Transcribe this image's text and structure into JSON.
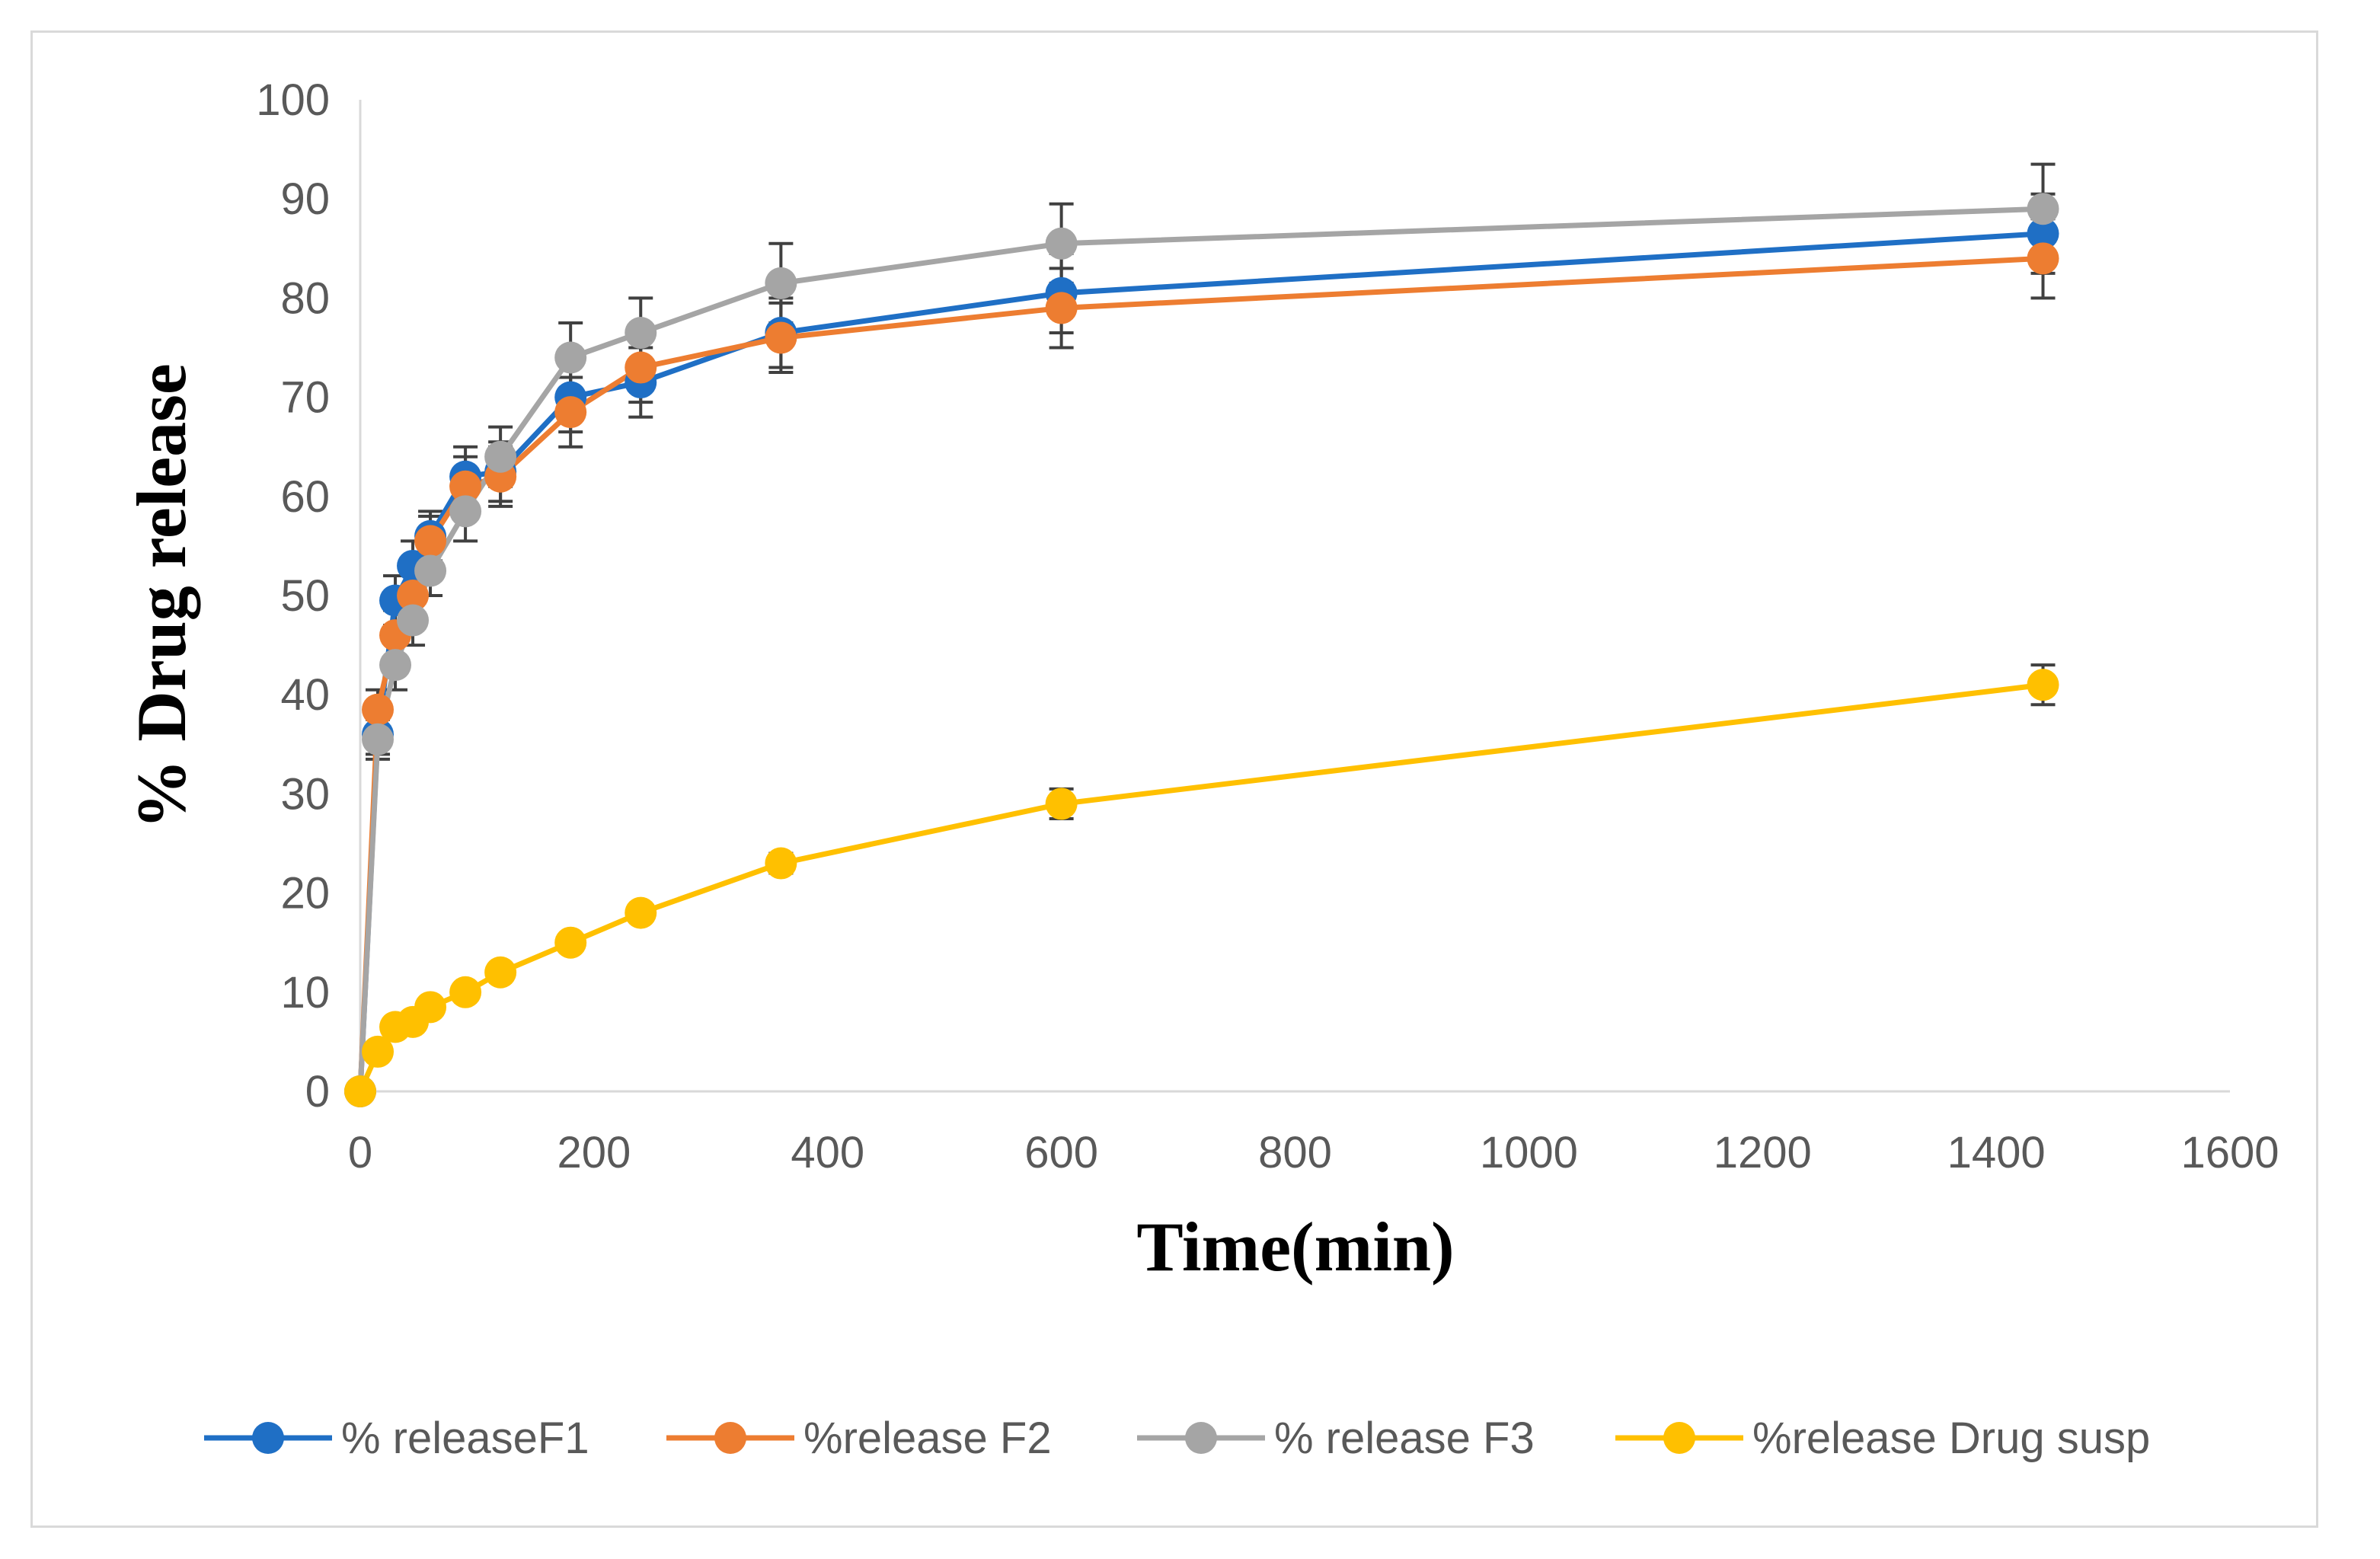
{
  "chart_data": {
    "type": "line",
    "title": "",
    "xlabel": "Time(min)",
    "ylabel": "% Drug release",
    "xlim": [
      0,
      1600
    ],
    "ylim": [
      0,
      100
    ],
    "x_ticks": [
      0,
      200,
      400,
      600,
      800,
      1000,
      1200,
      1400,
      1600
    ],
    "y_ticks": [
      0,
      10,
      20,
      30,
      40,
      50,
      60,
      70,
      80,
      90,
      100
    ],
    "grid": false,
    "legend_position": "bottom",
    "x": [
      0,
      15,
      30,
      45,
      60,
      90,
      120,
      180,
      240,
      360,
      600,
      1440
    ],
    "series": [
      {
        "name": "% releaseF1",
        "color": "#1f6fc5",
        "values": [
          0,
          36,
          49.5,
          53,
          56,
          62,
          62.5,
          70,
          71.5,
          76.5,
          80.5,
          86.5
        ],
        "errors": [
          0,
          2,
          2.5,
          2.5,
          2.5,
          3,
          3,
          3.5,
          3.5,
          3.5,
          4,
          4
        ]
      },
      {
        "name": "%release F2",
        "color": "#ed7d31",
        "values": [
          0,
          38.5,
          46,
          50,
          55.5,
          61,
          62,
          68.5,
          73,
          76,
          79,
          84
        ],
        "errors": [
          0,
          2,
          2.5,
          2.5,
          2.5,
          3,
          3,
          3.5,
          3.5,
          3.5,
          4,
          4
        ]
      },
      {
        "name": "% release F3",
        "color": "#a5a5a5",
        "values": [
          0,
          35.5,
          43,
          47.5,
          52.5,
          58.5,
          64,
          74,
          76.5,
          81.5,
          85.5,
          89
        ],
        "errors": [
          0,
          2,
          2.5,
          2.5,
          2.5,
          3,
          3,
          3.5,
          3.5,
          4,
          4,
          4.5
        ]
      },
      {
        "name": "%release Drug susp",
        "color": "#ffc000",
        "values": [
          0,
          4,
          6.5,
          7,
          8.5,
          10,
          12,
          15,
          18,
          23,
          29,
          41
        ],
        "errors": [
          0,
          0,
          0,
          0,
          0,
          0,
          0,
          0,
          0,
          1,
          1.5,
          2
        ]
      }
    ]
  }
}
